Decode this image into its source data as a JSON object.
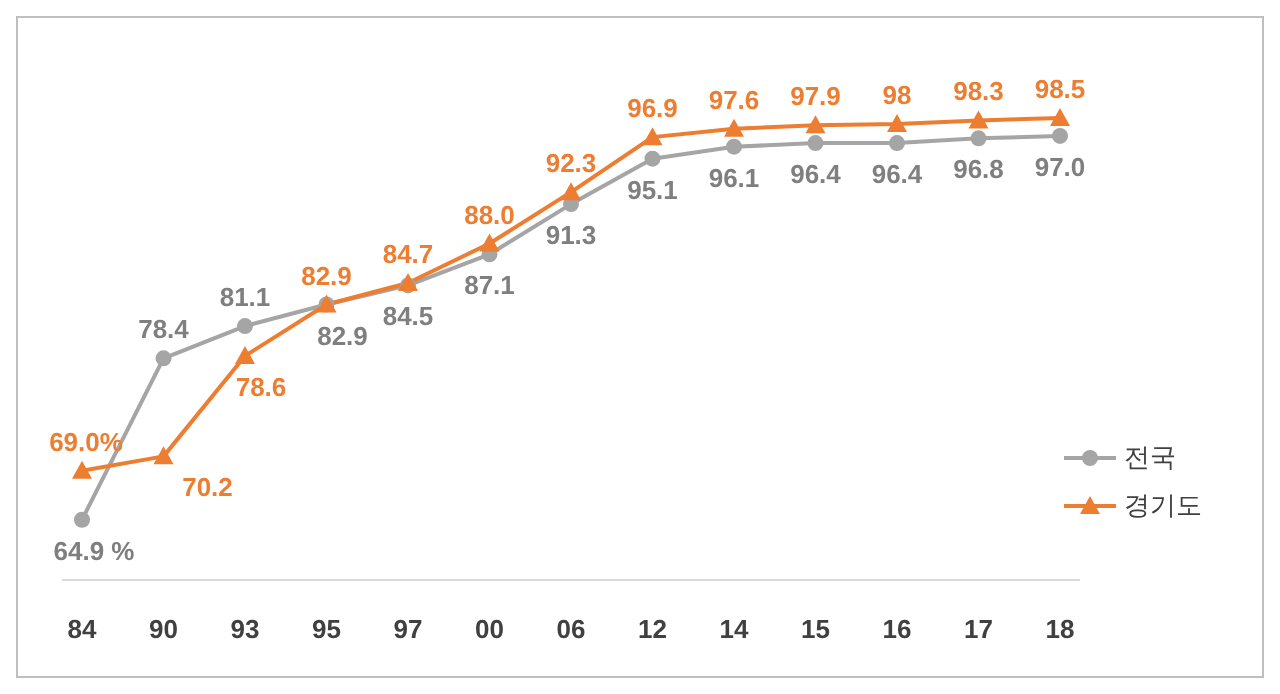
{
  "chart_data": {
    "type": "line",
    "categories": [
      "84",
      "90",
      "93",
      "95",
      "97",
      "00",
      "06",
      "12",
      "14",
      "15",
      "16",
      "17",
      "18"
    ],
    "series": [
      {
        "name": "전국",
        "color": "#a5a5a5",
        "marker": "circle",
        "values": [
          64.9,
          78.4,
          81.1,
          82.9,
          84.5,
          87.1,
          91.3,
          95.1,
          96.1,
          96.4,
          96.4,
          96.8,
          97.0
        ],
        "value_labels": [
          "64.9 %",
          "78.4",
          "81.1",
          "82.9",
          "84.5",
          "87.1",
          "91.3",
          "95.1",
          "96.1",
          "96.4",
          "96.4",
          "96.8",
          "97.0"
        ]
      },
      {
        "name": "경기도",
        "color": "#ed7d31",
        "marker": "triangle",
        "values": [
          69.0,
          70.2,
          78.6,
          82.9,
          84.7,
          88.0,
          92.3,
          96.9,
          97.6,
          97.9,
          98,
          98.3,
          98.5
        ],
        "value_labels": [
          "69.0%",
          "70.2",
          "78.6",
          "82.9",
          "84.7",
          "88.0",
          "92.3",
          "96.9",
          "97.6",
          "97.9",
          "98",
          "98.3",
          "98.5"
        ]
      }
    ],
    "legend": "bottom right",
    "grid": false
  }
}
